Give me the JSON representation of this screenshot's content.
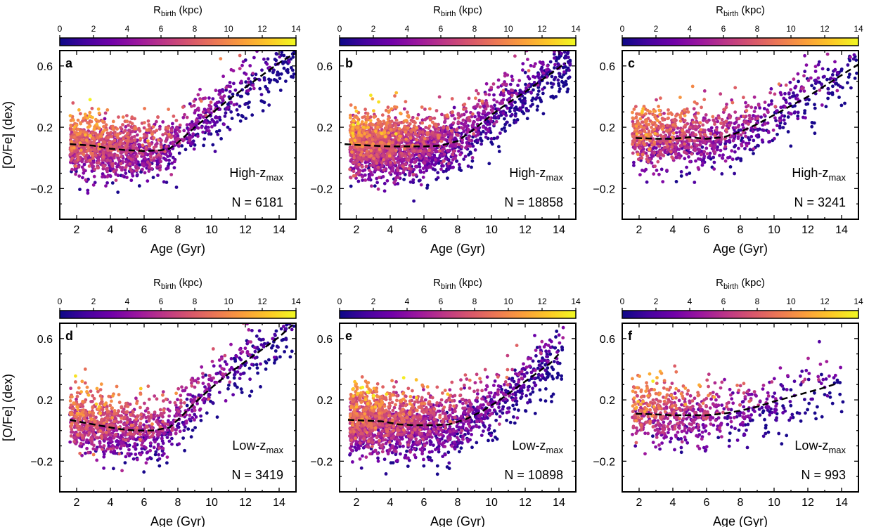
{
  "figure": {
    "colorbar_label": "R",
    "colorbar_label_sub": "birth",
    "colorbar_label_unit": " (kpc)",
    "colorbar_ticks": [
      "0",
      "2",
      "4",
      "6",
      "8",
      "10",
      "12",
      "14"
    ],
    "colorbar_range": [
      0,
      14
    ],
    "colormap": "plasma",
    "colormap_stops": [
      "#0d0887",
      "#46039f",
      "#7201a8",
      "#9c179e",
      "#bd3786",
      "#d8576b",
      "#ed7953",
      "#fb9f3a",
      "#fdca26",
      "#f0f921"
    ],
    "line_color": "#000000"
  },
  "chart_data": [
    {
      "type": "scatter",
      "panel_letter": "a",
      "title": "",
      "xlabel": "Age (Gyr)",
      "ylabel": "[O/Fe] (dex)",
      "xlim": [
        1,
        15
      ],
      "ylim": [
        -0.4,
        0.7
      ],
      "x_ticks": [
        "2",
        "4",
        "6",
        "8",
        "10",
        "12",
        "14"
      ],
      "y_ticks": [
        "−0.2",
        "0.2",
        "0.6"
      ],
      "label_main": "High-z",
      "label_sub": "max",
      "count_text": "N = 6181",
      "trend_line": {
        "x": [
          1.6,
          3,
          4,
          5,
          6,
          7,
          7.5,
          8,
          9,
          10,
          11,
          12,
          13,
          14,
          14.9
        ],
        "y": [
          0.09,
          0.08,
          0.06,
          0.05,
          0.045,
          0.05,
          0.06,
          0.1,
          0.2,
          0.29,
          0.38,
          0.46,
          0.54,
          0.62,
          0.68
        ]
      },
      "n_points": 6181
    },
    {
      "type": "scatter",
      "panel_letter": "b",
      "title": "",
      "xlabel": "Age (Gyr)",
      "ylabel": "",
      "xlim": [
        1,
        15
      ],
      "ylim": [
        -0.4,
        0.7
      ],
      "x_ticks": [
        "2",
        "4",
        "6",
        "8",
        "10",
        "12",
        "14"
      ],
      "y_ticks": [
        "−0.2",
        "0.2",
        "0.6"
      ],
      "label_main": "High-z",
      "label_sub": "max",
      "count_text": "N = 18858",
      "trend_line": {
        "x": [
          1.3,
          2,
          3,
          4,
          5,
          6,
          7,
          8,
          9,
          10,
          11,
          12,
          13,
          14.4
        ],
        "y": [
          0.09,
          0.085,
          0.08,
          0.075,
          0.075,
          0.075,
          0.08,
          0.11,
          0.19,
          0.28,
          0.36,
          0.43,
          0.51,
          0.62
        ]
      },
      "n_points": 18858
    },
    {
      "type": "scatter",
      "panel_letter": "c",
      "title": "",
      "xlabel": "Age (Gyr)",
      "ylabel": "",
      "xlim": [
        1,
        15
      ],
      "ylim": [
        -0.4,
        0.7
      ],
      "x_ticks": [
        "2",
        "4",
        "6",
        "8",
        "10",
        "12",
        "14"
      ],
      "y_ticks": [
        "−0.2",
        "0.2",
        "0.6"
      ],
      "label_main": "High-z",
      "label_sub": "max",
      "count_text": "N = 3241",
      "trend_line": {
        "x": [
          1.8,
          3,
          4,
          5,
          6,
          7,
          8,
          9,
          10,
          11,
          12,
          13,
          14,
          15
        ],
        "y": [
          0.13,
          0.125,
          0.125,
          0.135,
          0.125,
          0.135,
          0.17,
          0.22,
          0.28,
          0.34,
          0.4,
          0.47,
          0.54,
          0.61
        ]
      },
      "n_points": 3241
    },
    {
      "type": "scatter",
      "panel_letter": "d",
      "title": "",
      "xlabel": "Age (Gyr)",
      "ylabel": "[O/Fe] (dex)",
      "xlim": [
        1,
        15
      ],
      "ylim": [
        -0.4,
        0.7
      ],
      "x_ticks": [
        "2",
        "4",
        "6",
        "8",
        "10",
        "12",
        "14"
      ],
      "y_ticks": [
        "−0.2",
        "0.2",
        "0.6"
      ],
      "label_main": "Low-z",
      "label_sub": "max",
      "count_text": "N = 3419",
      "trend_line": {
        "x": [
          1.6,
          2.5,
          3.5,
          4.5,
          5.5,
          6.5,
          7.5,
          8,
          9,
          10,
          11,
          12,
          13,
          14,
          14.8
        ],
        "y": [
          0.07,
          0.05,
          0.03,
          0.01,
          0.0,
          0.0,
          0.02,
          0.07,
          0.18,
          0.28,
          0.37,
          0.45,
          0.53,
          0.61,
          0.69
        ]
      },
      "n_points": 3419
    },
    {
      "type": "scatter",
      "panel_letter": "e",
      "title": "",
      "xlabel": "Age (Gyr)",
      "ylabel": "",
      "xlim": [
        1,
        15
      ],
      "ylim": [
        -0.4,
        0.7
      ],
      "x_ticks": [
        "2",
        "4",
        "6",
        "8",
        "10",
        "12",
        "14"
      ],
      "y_ticks": [
        "−0.2",
        "0.2",
        "0.6"
      ],
      "label_main": "Low-z",
      "label_sub": "max",
      "count_text": "N = 10898",
      "trend_line": {
        "x": [
          1.5,
          2.5,
          3.5,
          4.5,
          5.5,
          6.5,
          7.5,
          8.5,
          9.5,
          10.5,
          11.5,
          12.5,
          13.5,
          14
        ],
        "y": [
          0.07,
          0.065,
          0.06,
          0.04,
          0.035,
          0.035,
          0.04,
          0.075,
          0.13,
          0.2,
          0.28,
          0.36,
          0.44,
          0.5
        ]
      },
      "n_points": 10898
    },
    {
      "type": "scatter",
      "panel_letter": "f",
      "title": "",
      "xlabel": "Age (Gyr)",
      "ylabel": "",
      "xlim": [
        1,
        15
      ],
      "ylim": [
        -0.4,
        0.7
      ],
      "x_ticks": [
        "2",
        "4",
        "6",
        "8",
        "10",
        "12",
        "14"
      ],
      "y_ticks": [
        "−0.2",
        "0.2",
        "0.6"
      ],
      "label_main": "Low-z",
      "label_sub": "max",
      "count_text": "N = 993",
      "trend_line": {
        "x": [
          1.8,
          3,
          4,
          5,
          6,
          7,
          8,
          9,
          10,
          11,
          12,
          13,
          13.8
        ],
        "y": [
          0.11,
          0.105,
          0.1,
          0.1,
          0.1,
          0.11,
          0.13,
          0.155,
          0.19,
          0.22,
          0.25,
          0.28,
          0.31
        ]
      },
      "n_points": 993
    }
  ]
}
